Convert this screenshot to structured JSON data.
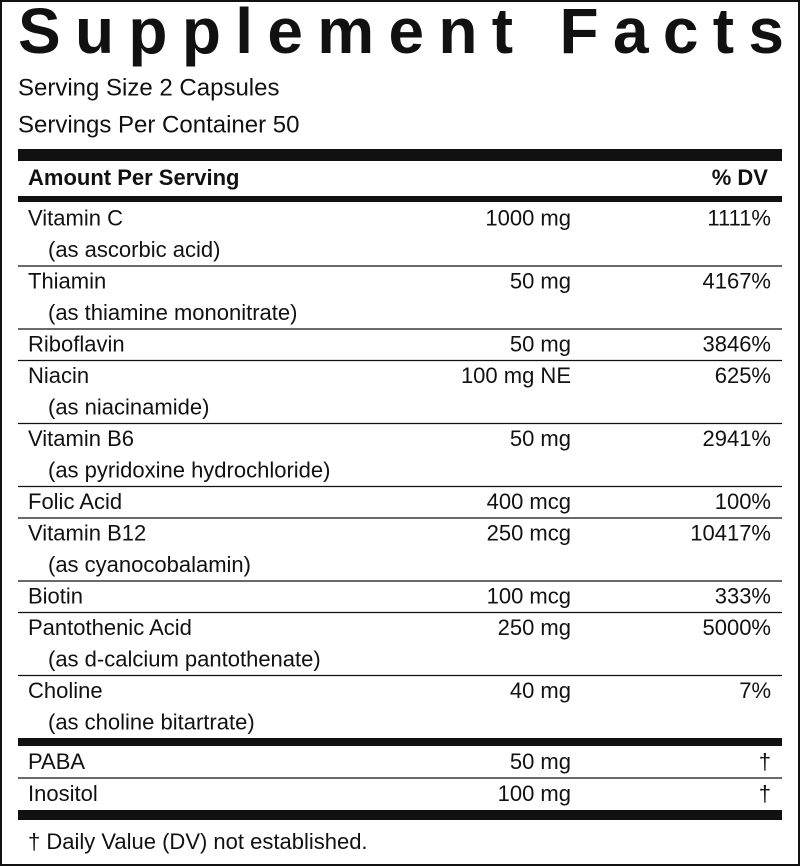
{
  "title": "Supplement Facts",
  "serving_size": "Serving Size 2 Capsules",
  "servings_per_container": "Servings Per Container 50",
  "table": {
    "header": {
      "amount_label": "Amount Per Serving",
      "dv_label": "% DV"
    },
    "rows": [
      {
        "name": "Vitamin C",
        "source": "(as ascorbic acid)",
        "amount": "1000 mg",
        "dv": "1111%"
      },
      {
        "name": "Thiamin",
        "source": "(as thiamine mononitrate)",
        "amount": "50 mg",
        "dv": "4167%"
      },
      {
        "name": "Riboflavin",
        "amount": "50 mg",
        "dv": "3846%"
      },
      {
        "name": "Niacin",
        "source": "(as niacinamide)",
        "amount": "100 mg NE",
        "dv": "625%"
      },
      {
        "name": "Vitamin B6",
        "source": "(as pyridoxine hydrochloride)",
        "amount": "50 mg",
        "dv": "2941%"
      },
      {
        "name": "Folic Acid",
        "amount": "400 mcg",
        "dv": "100%"
      },
      {
        "name": "Vitamin B12",
        "source": "(as cyanocobalamin)",
        "amount": "250 mcg",
        "dv": "10417%"
      },
      {
        "name": "Biotin",
        "amount": "100 mcg",
        "dv": "333%"
      },
      {
        "name": "Pantothenic Acid",
        "source": "(as d-calcium pantothenate)",
        "amount": "250 mg",
        "dv": "5000%"
      },
      {
        "name": "Choline",
        "source": "(as choline bitartrate)",
        "amount": "40 mg",
        "dv": "7%"
      }
    ],
    "other_rows": [
      {
        "name": "PABA",
        "amount": "50 mg",
        "dv": "†"
      },
      {
        "name": "Inositol",
        "amount": "100 mg",
        "dv": "†"
      }
    ]
  },
  "footnote": "† Daily Value (DV) not established."
}
